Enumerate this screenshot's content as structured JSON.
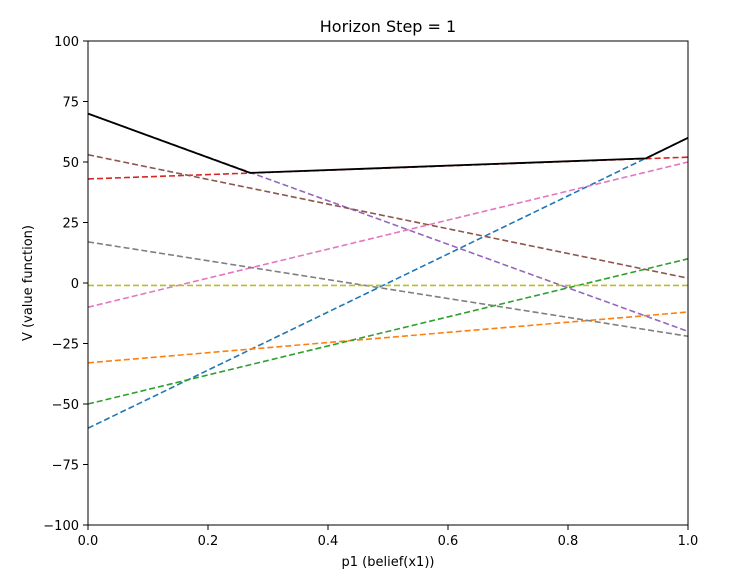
{
  "chart_data": {
    "type": "line",
    "title": "Horizon Step = 1",
    "xlabel": "p1 (belief(x1))",
    "ylabel": "V (value function)",
    "xlim": [
      0.0,
      1.0
    ],
    "ylim": [
      -100,
      100
    ],
    "xticks": [
      "0.0",
      "0.2",
      "0.4",
      "0.6",
      "0.8",
      "1.0"
    ],
    "yticks": [
      "100",
      "75",
      "50",
      "25",
      "0",
      "−25",
      "−50",
      "−75",
      "−100"
    ],
    "xtick_values": [
      0.0,
      0.2,
      0.4,
      0.6,
      0.8,
      1.0
    ],
    "ytick_values": [
      100,
      75,
      50,
      25,
      0,
      -25,
      -50,
      -75,
      -100
    ],
    "grid": false,
    "legend": "none",
    "series": [
      {
        "color": "#1f77b4",
        "style": "dashed",
        "x": [
          0,
          1
        ],
        "y": [
          -60,
          60
        ]
      },
      {
        "color": "#ff7f0e",
        "style": "dashed",
        "x": [
          0,
          1
        ],
        "y": [
          -33,
          -12
        ]
      },
      {
        "color": "#2ca02c",
        "style": "dashed",
        "x": [
          0,
          1
        ],
        "y": [
          -50,
          10
        ]
      },
      {
        "color": "#d62728",
        "style": "dashed",
        "x": [
          0,
          1
        ],
        "y": [
          43,
          52
        ]
      },
      {
        "color": "#9467bd",
        "style": "dashed",
        "x": [
          0,
          1
        ],
        "y": [
          70,
          -20
        ]
      },
      {
        "color": "#8c564b",
        "style": "dashed",
        "x": [
          0,
          1
        ],
        "y": [
          53,
          2
        ]
      },
      {
        "color": "#e377c2",
        "style": "dashed",
        "x": [
          0,
          1
        ],
        "y": [
          -10,
          50
        ]
      },
      {
        "color": "#7f7f7f",
        "style": "dashed",
        "x": [
          0,
          1
        ],
        "y": [
          17,
          -22
        ]
      },
      {
        "color": "#bcbd22",
        "style": "dashed",
        "x": [
          0,
          1
        ],
        "y": [
          -1,
          -1
        ]
      },
      {
        "color": "#000000",
        "style": "solid",
        "x": [
          0,
          0.27,
          0.93,
          1.0
        ],
        "y": [
          70,
          45.5,
          51.5,
          60
        ]
      }
    ]
  }
}
